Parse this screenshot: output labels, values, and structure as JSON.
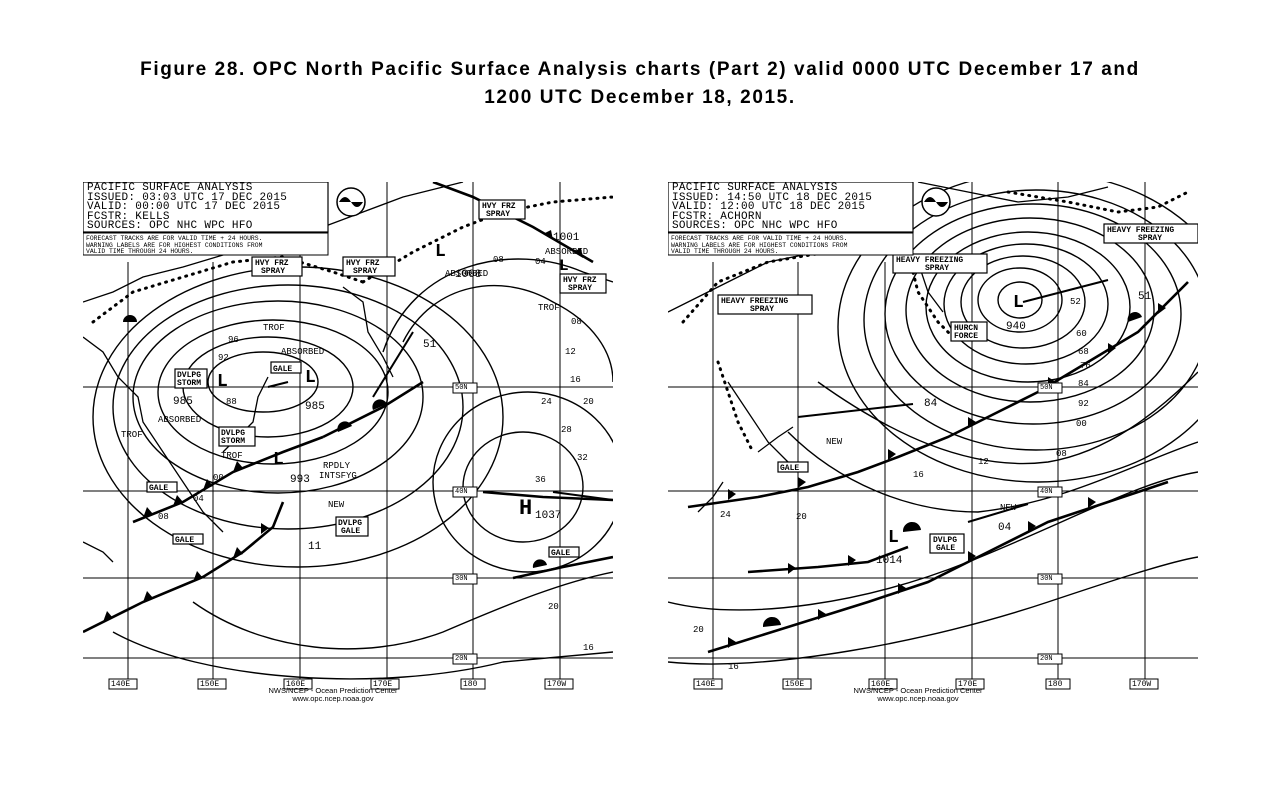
{
  "caption": {
    "line1": "Figure 28.  OPC North Pacific Surface Analysis charts (Part 2) valid 0000 UTC December 17 and",
    "line2": "1200 UTC December 18, 2015."
  },
  "colors": {
    "ink": "#000000",
    "paper": "#ffffff"
  },
  "icons": [
    "noaa-logo-icon",
    "cold-front-triangle-icon",
    "warm-front-semicircle-icon",
    "low-pressure-marker-icon",
    "high-pressure-marker-icon"
  ],
  "maps": [
    {
      "header": [
        "PACIFIC SURFACE ANALYSIS",
        "ISSUED: 03:03 UTC 17 DEC 2015",
        "VALID:  00:00 UTC 17 DEC 2015",
        "FCSTR:  KELLS",
        "SOURCES: OPC NHC WPC HFO"
      ],
      "note": [
        "FORECAST TRACKS ARE FOR VALID TIME + 24 HOURS.",
        "WARNING LABELS ARE FOR HIGHEST CONDITIONS FROM",
        "VALID TIME THROUGH 24 HOURS."
      ],
      "lon_labels": [
        "140E",
        "150E",
        "160E",
        "170E",
        "180",
        "170W"
      ],
      "lat_labels": [
        "50N",
        "40N",
        "30N",
        "20N"
      ],
      "footer": [
        "NWS/NCEP - Ocean Prediction Center",
        "www.opc.ncep.noaa.gov"
      ],
      "boxes": [
        "HVY FRZ",
        "SPRAY",
        "HVY FRZ",
        "SPRAY",
        "HVY FRZ",
        "SPRAY",
        "HVY FRZ",
        "SPRAY",
        "GALE",
        "DVLPG",
        "STORM",
        "DVLPG",
        "STORM",
        "GALE",
        "GALE",
        "DVLPG",
        "GALE",
        "GALE"
      ],
      "pressures": [
        "1008",
        "1001",
        "51",
        "985",
        "985",
        "993",
        "11",
        "1037"
      ],
      "labels": [
        "ABSORBED",
        "ABSORBED",
        "ABSORBED",
        "ABSORBED",
        "TROF",
        "TROF",
        "TROF",
        "TROF",
        "RPDLY",
        "INTSFYG",
        "NEW",
        "H",
        "L",
        "L",
        "L",
        "L",
        "L"
      ],
      "isobars": [
        "96",
        "92",
        "88",
        "00",
        "04",
        "08",
        "12",
        "16",
        "20",
        "24",
        "28",
        "32",
        "36",
        "08",
        "04",
        "08",
        "16",
        "20"
      ]
    },
    {
      "header": [
        "PACIFIC SURFACE ANALYSIS",
        "ISSUED: 14:50 UTC 18 DEC 2015",
        "VALID:  12:00 UTC 18 DEC 2015",
        "FCSTR:  ACHORN",
        "SOURCES: OPC NHC WPC HFO"
      ],
      "note": [
        "FORECAST TRACKS ARE FOR VALID TIME + 24 HOURS.",
        "WARNING LABELS ARE FOR HIGHEST CONDITIONS FROM",
        "VALID TIME THROUGH 24 HOURS."
      ],
      "lon_labels": [
        "140E",
        "150E",
        "160E",
        "170E",
        "180",
        "170W"
      ],
      "lat_labels": [
        "50N",
        "40N",
        "30N",
        "20N"
      ],
      "footer": [
        "NWS/NCEP - Ocean Prediction Center",
        "www.opc.ncep.noaa.gov"
      ],
      "boxes": [
        "HEAVY FREEZING",
        "SPRAY",
        "HEAVY FREEZING",
        "SPRAY",
        "HEAVY FREEZING",
        "SPRAY",
        "HURCN",
        "FORCE",
        "GALE",
        "DVLPG",
        "GALE"
      ],
      "pressures": [
        "940",
        "51",
        "84",
        "04",
        "1014"
      ],
      "labels": [
        "NEW",
        "NEW",
        "L",
        "L"
      ],
      "isobars": [
        "52",
        "60",
        "68",
        "76",
        "84",
        "92",
        "00",
        "08",
        "12",
        "16",
        "20",
        "24",
        "20",
        "16"
      ]
    }
  ]
}
